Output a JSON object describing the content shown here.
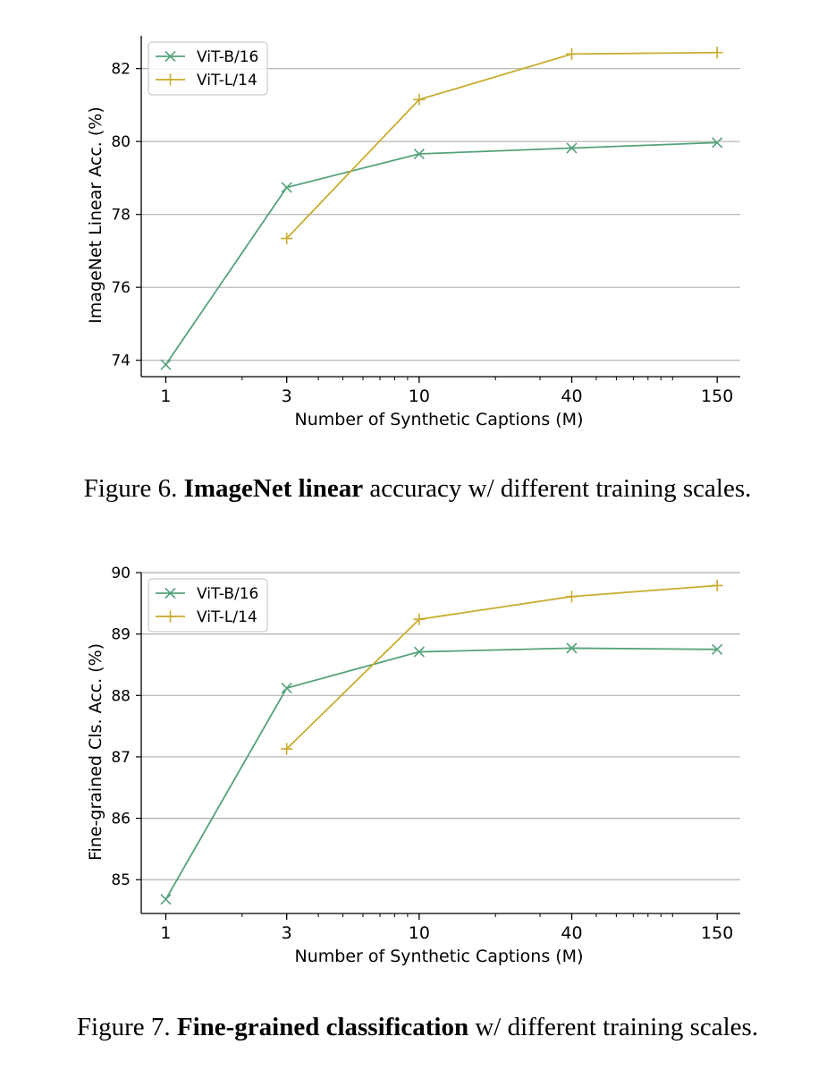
{
  "figures": [
    {
      "caption": {
        "prefix": "Figure 6. ",
        "bold": "ImageNet linear",
        "suffix": " accuracy w/ different training scales."
      }
    },
    {
      "caption": {
        "prefix": "Figure 7. ",
        "bold": "Fine-grained classification",
        "suffix": " w/ different training scales."
      }
    }
  ],
  "chart_data": [
    {
      "type": "line",
      "xlabel": "Number of Synthetic Captions (M)",
      "ylabel": "ImageNet Linear Acc. (%)",
      "x_scale": "log",
      "x_ticks": [
        1,
        3,
        10,
        40,
        150
      ],
      "xlim": [
        0.8,
        185
      ],
      "ylim": [
        73.55,
        82.9
      ],
      "y_ticks": [
        74,
        76,
        78,
        80,
        82
      ],
      "grid": "horizontal",
      "legend_position": "top-left",
      "series": [
        {
          "name": "ViT-B/16",
          "marker": "x",
          "color": "#55a27a",
          "x": [
            1,
            3,
            10,
            40,
            150
          ],
          "y": [
            73.88,
            78.74,
            79.66,
            79.82,
            79.97
          ]
        },
        {
          "name": "ViT-L/14",
          "marker": "+",
          "color": "#c9ac2e",
          "x": [
            3,
            10,
            40,
            150
          ],
          "y": [
            77.34,
            81.15,
            82.4,
            82.44
          ]
        }
      ]
    },
    {
      "type": "line",
      "xlabel": "Number of Synthetic Captions (M)",
      "ylabel": "Fine-grained Cls. Acc. (%)",
      "x_scale": "log",
      "x_ticks": [
        1,
        3,
        10,
        40,
        150
      ],
      "xlim": [
        0.8,
        185
      ],
      "ylim": [
        84.45,
        90.0
      ],
      "y_ticks": [
        85,
        86,
        87,
        88,
        89,
        90
      ],
      "grid": "horizontal",
      "legend_position": "top-left",
      "series": [
        {
          "name": "ViT-B/16",
          "marker": "x",
          "color": "#55a27a",
          "x": [
            1,
            3,
            10,
            40,
            150
          ],
          "y": [
            84.68,
            88.12,
            88.71,
            88.77,
            88.75
          ]
        },
        {
          "name": "ViT-L/14",
          "marker": "+",
          "color": "#c9ac2e",
          "x": [
            3,
            10,
            40,
            150
          ],
          "y": [
            87.13,
            89.24,
            89.61,
            89.79
          ]
        }
      ]
    }
  ]
}
